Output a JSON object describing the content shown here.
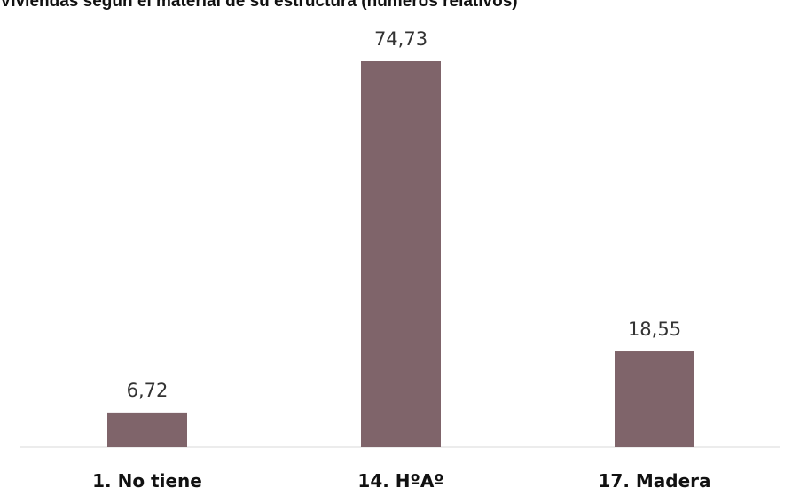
{
  "chart_data": {
    "type": "bar",
    "title": "Viviendas según el material de su estructura (números relativos)",
    "categories": [
      "1. No tiene",
      "14. HºAº",
      "17. Madera"
    ],
    "values": [
      6.72,
      74.73,
      18.55
    ],
    "value_labels": [
      "6,72",
      "74,73",
      "18,55"
    ],
    "xlabel": "",
    "ylabel": "",
    "ylim": [
      0,
      80
    ],
    "grid": false,
    "legend": "none",
    "bar_color": "#7f646a",
    "axis_color": "#d9d9d9"
  }
}
